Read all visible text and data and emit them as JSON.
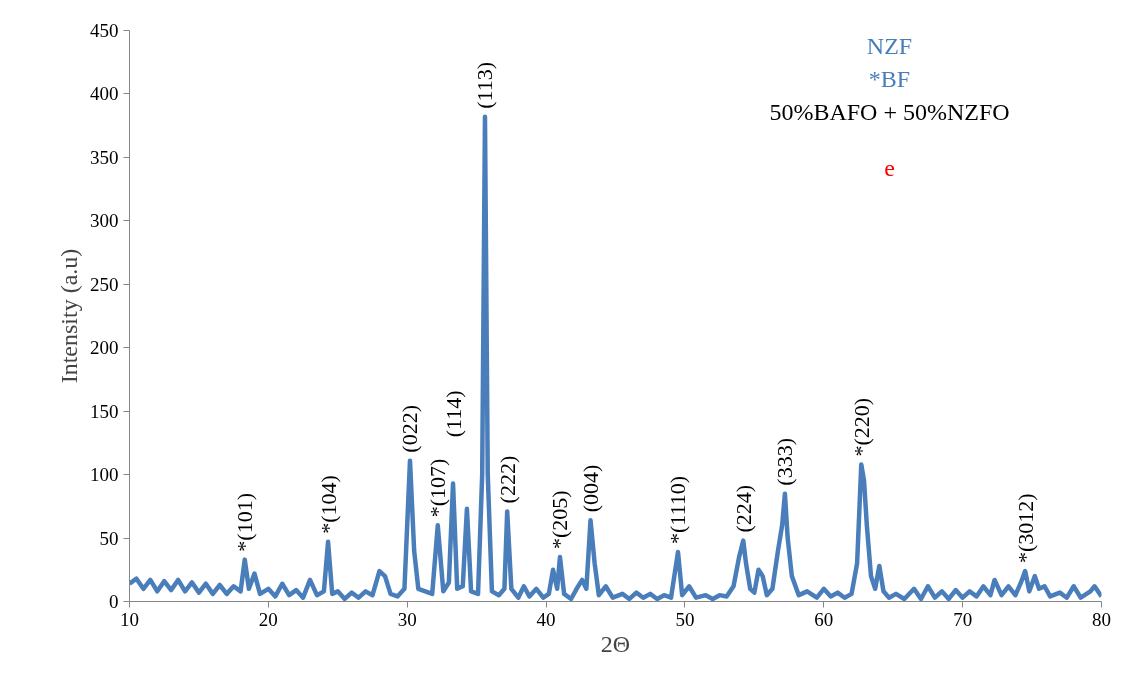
{
  "chart_data": {
    "type": "line",
    "xlabel": "2Θ",
    "ylabel": "Intensity (a.u)",
    "xlim": [
      10,
      80
    ],
    "xticks": [
      10,
      20,
      30,
      40,
      50,
      60,
      70,
      80
    ],
    "ylim": [
      0,
      450
    ],
    "yticks": [
      0,
      50,
      100,
      150,
      200,
      250,
      300,
      350,
      400,
      450
    ],
    "grid": false,
    "line_style": "solid",
    "series": [
      {
        "color": "#4a7ebb",
        "x": [
          10,
          10.5,
          11,
          11.5,
          12,
          12.5,
          13,
          13.5,
          14,
          14.5,
          15,
          15.5,
          16,
          16.5,
          17,
          17.5,
          18,
          18.3,
          18.6,
          19,
          19.4,
          20,
          20.5,
          21,
          21.5,
          22,
          22.5,
          23,
          23.5,
          24,
          24.3,
          24.6,
          25,
          25.5,
          26,
          26.5,
          27,
          27.5,
          28,
          28.4,
          28.8,
          29.3,
          29.8,
          30.2,
          30.5,
          30.8,
          31.3,
          31.8,
          32.2,
          32.6,
          33,
          33.3,
          33.6,
          34,
          34.3,
          34.6,
          35.1,
          35.4,
          35.6,
          35.8,
          36.1,
          36.6,
          37,
          37.2,
          37.5,
          38,
          38.4,
          38.8,
          39.3,
          39.8,
          40.2,
          40.5,
          40.8,
          41,
          41.3,
          41.8,
          42.2,
          42.6,
          42.9,
          43.2,
          43.5,
          43.8,
          44.3,
          44.8,
          45.5,
          46,
          46.5,
          47,
          47.5,
          48,
          48.5,
          49,
          49.5,
          49.8,
          50.3,
          50.8,
          51.5,
          52,
          52.5,
          53,
          53.5,
          53.9,
          54.2,
          54.4,
          54.7,
          55,
          55.3,
          55.6,
          55.9,
          56.3,
          56.7,
          57,
          57.2,
          57.4,
          57.7,
          58.2,
          58.8,
          59.5,
          60,
          60.5,
          61,
          61.5,
          62,
          62.4,
          62.7,
          62.9,
          63.1,
          63.4,
          63.7,
          64,
          64.3,
          64.7,
          65.2,
          65.8,
          66.5,
          67,
          67.5,
          68,
          68.5,
          69,
          69.5,
          70,
          70.5,
          71,
          71.5,
          72,
          72.3,
          72.8,
          73.3,
          73.8,
          74.2,
          74.5,
          74.8,
          75.2,
          75.5,
          75.9,
          76.3,
          77,
          77.5,
          78,
          78.5,
          79.2,
          79.5,
          80
        ],
        "values": [
          14,
          18,
          10,
          17,
          8,
          16,
          9,
          17,
          8,
          15,
          7,
          14,
          6,
          13,
          6,
          12,
          8,
          33,
          10,
          22,
          6,
          10,
          4,
          14,
          5,
          9,
          3,
          17,
          5,
          8,
          47,
          6,
          8,
          2,
          7,
          3,
          8,
          5,
          24,
          20,
          6,
          4,
          10,
          111,
          40,
          10,
          8,
          6,
          60,
          8,
          15,
          93,
          10,
          12,
          73,
          8,
          6,
          100,
          382,
          100,
          8,
          5,
          10,
          71,
          10,
          3,
          12,
          4,
          10,
          3,
          6,
          25,
          10,
          35,
          6,
          2,
          10,
          17,
          10,
          64,
          30,
          5,
          12,
          3,
          6,
          2,
          7,
          3,
          6,
          2,
          5,
          3,
          39,
          5,
          12,
          3,
          5,
          2,
          5,
          4,
          12,
          35,
          48,
          30,
          10,
          7,
          25,
          20,
          5,
          10,
          40,
          60,
          85,
          50,
          20,
          5,
          8,
          3,
          10,
          4,
          7,
          3,
          6,
          30,
          108,
          95,
          60,
          20,
          10,
          28,
          8,
          3,
          6,
          2,
          10,
          2,
          12,
          3,
          8,
          2,
          9,
          3,
          8,
          4,
          12,
          5,
          17,
          5,
          12,
          5,
          15,
          24,
          8,
          20,
          10,
          12,
          4,
          7,
          3,
          12,
          3,
          8,
          12,
          4
        ]
      }
    ],
    "annotations": [
      "NZF",
      "*BF",
      "50%BAFO + 50%NZFO",
      "e",
      {
        "text": "*(101)",
        "x": 18.3,
        "y": 33
      },
      {
        "text": "*(104)",
        "x": 24.3,
        "y": 47
      },
      {
        "text": "(022)",
        "x": 30.2,
        "y": 111
      },
      {
        "text": "*(107)",
        "x": 32.2,
        "y": 60
      },
      {
        "text": "(114)",
        "x": 33.3,
        "y": 93
      },
      {
        "text": "(113)",
        "x": 35.6,
        "y": 382
      },
      {
        "text": "(222)",
        "x": 37.2,
        "y": 71
      },
      {
        "text": "*(205)",
        "x": 41,
        "y": 35
      },
      {
        "text": "(004)",
        "x": 43.2,
        "y": 64
      },
      {
        "text": "*(1110)",
        "x": 49.5,
        "y": 39
      },
      {
        "text": "(224)",
        "x": 54.2,
        "y": 48
      },
      {
        "text": "(333)",
        "x": 57.2,
        "y": 85
      },
      {
        "text": "*(220)",
        "x": 62.7,
        "y": 108
      },
      {
        "text": "*(3012)",
        "x": 74.5,
        "y": 24
      }
    ]
  }
}
